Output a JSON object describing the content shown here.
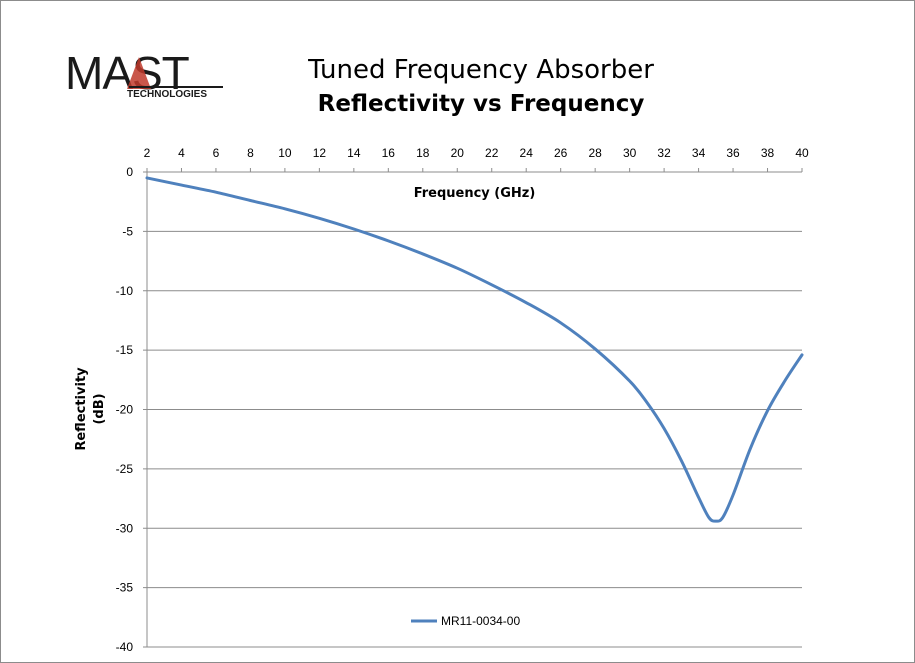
{
  "logo": {
    "main_text": "MAST",
    "sub_text": "TECHNOLOGIES"
  },
  "chart_data": {
    "type": "line",
    "title": "Tuned Frequency Absorber",
    "subtitle": "Reflectivity vs Frequency",
    "xlabel": "Frequency (GHz)",
    "ylabel_lines": [
      "Reflectivity",
      "(dB)"
    ],
    "xlim": [
      2,
      40
    ],
    "ylim": [
      -40,
      0
    ],
    "x_ticks": [
      2,
      4,
      6,
      8,
      10,
      12,
      14,
      16,
      18,
      20,
      22,
      24,
      26,
      28,
      30,
      32,
      34,
      36,
      38,
      40
    ],
    "y_ticks": [
      0,
      -5,
      -10,
      -15,
      -20,
      -25,
      -30,
      -35,
      -40
    ],
    "x_axis_position": "top",
    "grid": "horizontal",
    "legend_position": "bottom-center",
    "series": [
      {
        "name": "MR11-0034-00",
        "color": "#4f81bd",
        "x": [
          2,
          4,
          6,
          8,
          10,
          12,
          14,
          16,
          18,
          20,
          22,
          24,
          26,
          28,
          30,
          31,
          32,
          33,
          34,
          34.6,
          35,
          35.4,
          36,
          37,
          38,
          39,
          40
        ],
        "y": [
          -0.5,
          -1.1,
          -1.7,
          -2.4,
          -3.1,
          -3.9,
          -4.8,
          -5.8,
          -6.9,
          -8.1,
          -9.5,
          -11.0,
          -12.7,
          -14.9,
          -17.6,
          -19.4,
          -21.6,
          -24.3,
          -27.4,
          -29.1,
          -29.4,
          -29.1,
          -27.2,
          -23.3,
          -20.1,
          -17.6,
          -15.4
        ]
      }
    ]
  }
}
